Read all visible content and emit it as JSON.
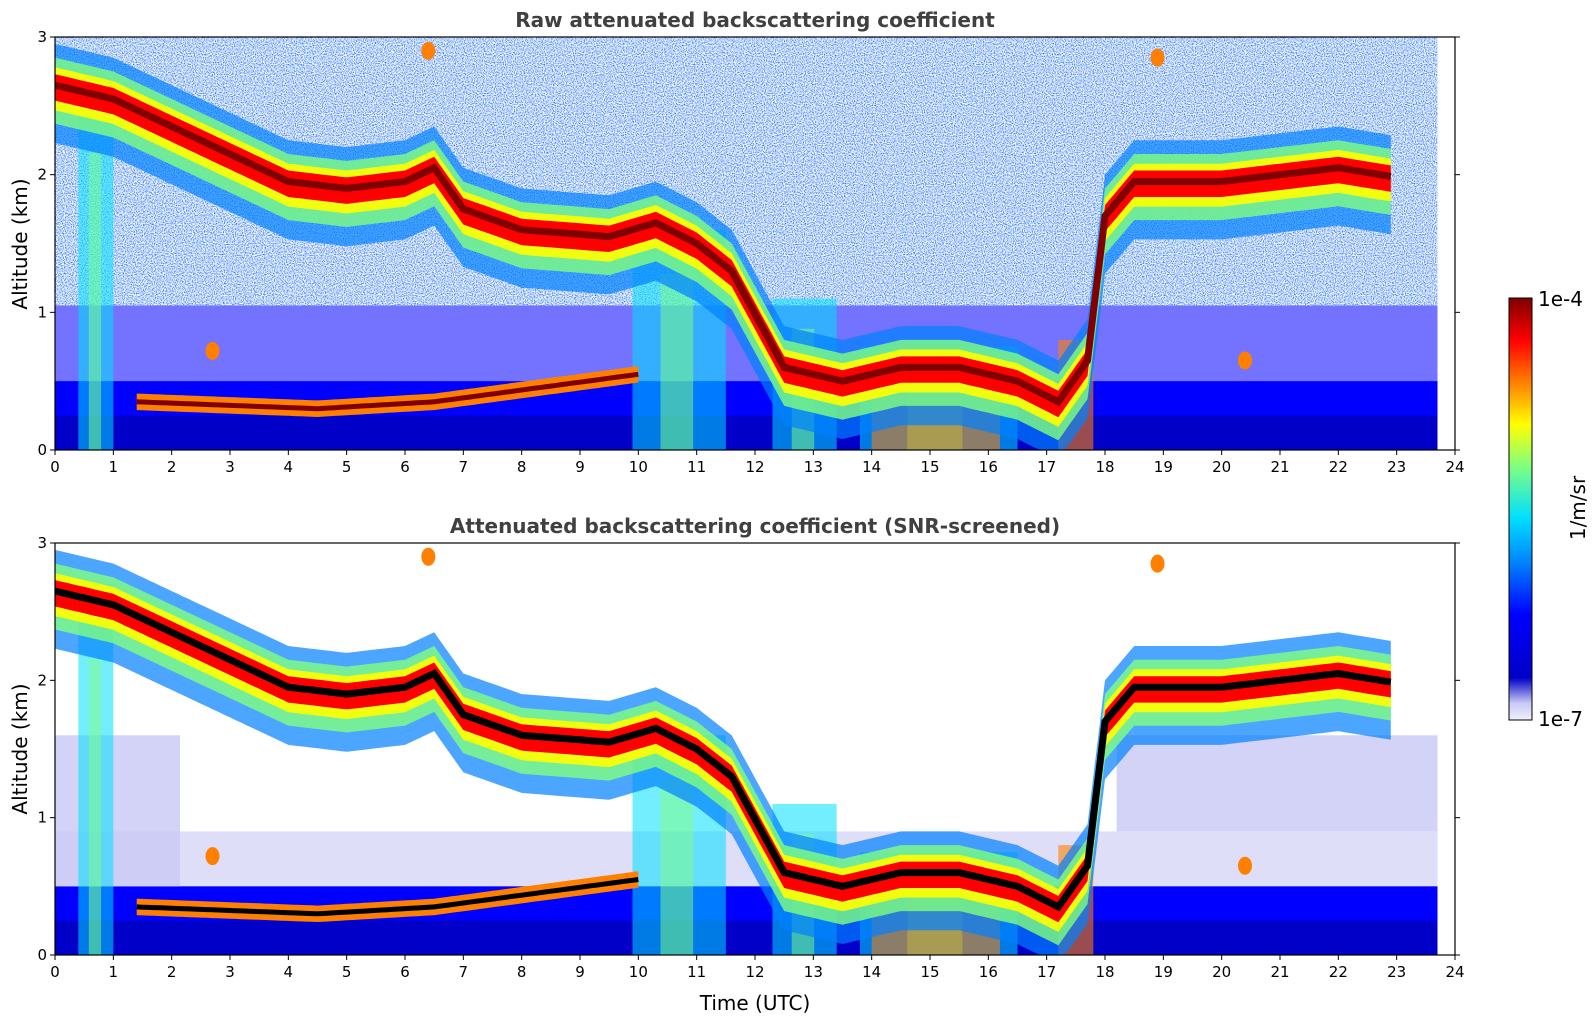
{
  "colors": {
    "jet": [
      "#f0f0fa",
      "#c8c8f5",
      "#0000c8",
      "#0000ff",
      "#0080ff",
      "#00e0ff",
      "#7fff80",
      "#ffff00",
      "#ff8000",
      "#ff0000",
      "#800000"
    ],
    "core_black": "#000000"
  },
  "chart_data": [
    {
      "type": "heatmap",
      "title": "Raw attenuated backscattering coefficient",
      "xlabel": "",
      "ylabel": "Altitude (km)",
      "xlim": [
        0,
        24
      ],
      "ylim": [
        0,
        3
      ],
      "xticks": [
        "0",
        "1",
        "2",
        "3",
        "4",
        "5",
        "6",
        "7",
        "8",
        "9",
        "10",
        "11",
        "12",
        "13",
        "14",
        "15",
        "16",
        "17",
        "18",
        "19",
        "20",
        "21",
        "22",
        "23",
        "24"
      ],
      "yticks": [
        "0",
        "1",
        "2",
        "3"
      ],
      "data_end_hour": 23.7,
      "cloud_layer_core": [
        {
          "t": 0.0,
          "alt": 2.65
        },
        {
          "t": 1.0,
          "alt": 2.55
        },
        {
          "t": 2.5,
          "alt": 2.25
        },
        {
          "t": 4.0,
          "alt": 1.95
        },
        {
          "t": 5.0,
          "alt": 1.9
        },
        {
          "t": 6.0,
          "alt": 1.95
        },
        {
          "t": 6.5,
          "alt": 2.05
        },
        {
          "t": 7.0,
          "alt": 1.75
        },
        {
          "t": 8.0,
          "alt": 1.6
        },
        {
          "t": 9.5,
          "alt": 1.55
        },
        {
          "t": 10.3,
          "alt": 1.65
        },
        {
          "t": 11.0,
          "alt": 1.5
        },
        {
          "t": 11.6,
          "alt": 1.3
        },
        {
          "t": 12.5,
          "alt": 0.6
        },
        {
          "t": 13.5,
          "alt": 0.5
        },
        {
          "t": 14.5,
          "alt": 0.6
        },
        {
          "t": 15.5,
          "alt": 0.6
        },
        {
          "t": 16.5,
          "alt": 0.5
        },
        {
          "t": 17.2,
          "alt": 0.35
        },
        {
          "t": 17.7,
          "alt": 0.65
        },
        {
          "t": 18.0,
          "alt": 1.7
        },
        {
          "t": 18.5,
          "alt": 1.95
        },
        {
          "t": 20.0,
          "alt": 1.95
        },
        {
          "t": 21.0,
          "alt": 2.0
        },
        {
          "t": 22.0,
          "alt": 2.05
        },
        {
          "t": 23.0,
          "alt": 1.98
        }
      ],
      "low_layer": [
        {
          "t": 1.4,
          "alt": 0.35
        },
        {
          "t": 4.5,
          "alt": 0.3
        },
        {
          "t": 6.5,
          "alt": 0.35
        },
        {
          "t": 10.0,
          "alt": 0.55
        }
      ]
    },
    {
      "type": "heatmap",
      "title": "Attenuated backscattering coefficient (SNR-screened)",
      "xlabel": "Time (UTC)",
      "ylabel": "Altitude (km)",
      "xlim": [
        0,
        24
      ],
      "ylim": [
        0,
        3
      ],
      "xticks": [
        "0",
        "1",
        "2",
        "3",
        "4",
        "5",
        "6",
        "7",
        "8",
        "9",
        "10",
        "11",
        "12",
        "13",
        "14",
        "15",
        "16",
        "17",
        "18",
        "19",
        "20",
        "21",
        "22",
        "23",
        "24"
      ],
      "yticks": [
        "0",
        "1",
        "2",
        "3"
      ],
      "data_end_hour": 23.7
    }
  ],
  "colorbar": {
    "label": "1/m/sr",
    "max_label": "1e-4",
    "min_label": "1e-7",
    "scale": "log",
    "range": [
      1e-07,
      0.0001
    ]
  }
}
